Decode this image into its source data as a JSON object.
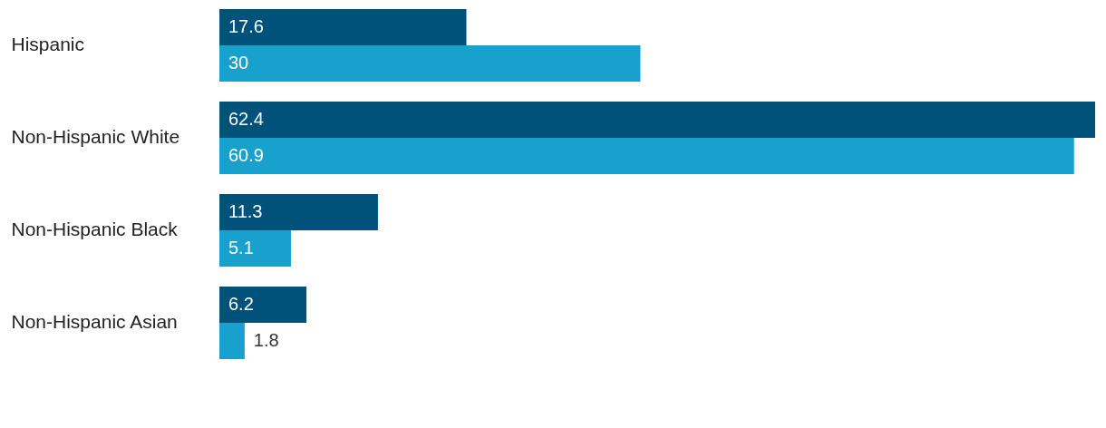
{
  "chart_data": {
    "type": "bar",
    "orientation": "horizontal",
    "categories": [
      "Hispanic",
      "Non-Hispanic White",
      "Non-Hispanic Black",
      "Non-Hispanic Asian"
    ],
    "series": [
      {
        "color": "#00527a",
        "values": [
          17.6,
          62.4,
          11.3,
          6.2
        ]
      },
      {
        "color": "#18a1cd",
        "values": [
          30,
          60.9,
          5.1,
          1.8
        ]
      }
    ],
    "xlim": [
      0,
      62.4
    ],
    "data_labels": true,
    "tick_labels": "y"
  }
}
